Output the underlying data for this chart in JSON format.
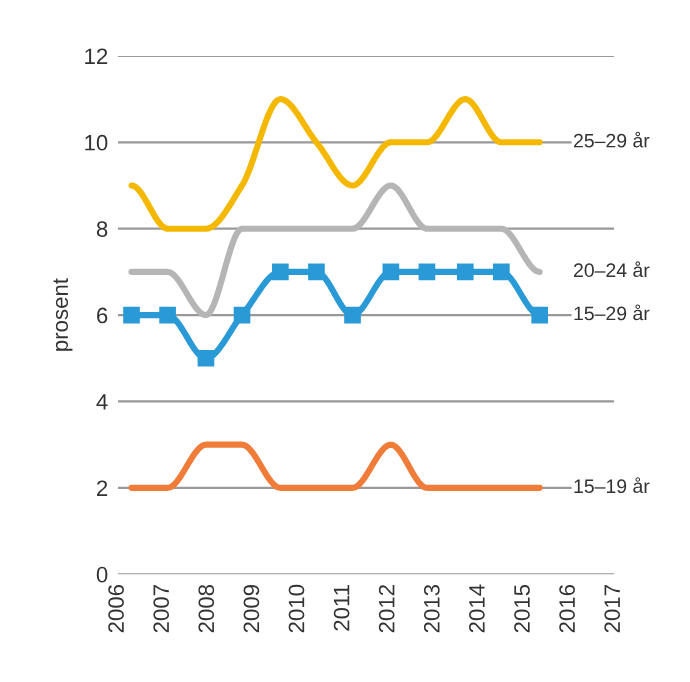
{
  "chart_data": {
    "type": "line",
    "ylabel": "prosent",
    "x": [
      2006.3,
      2007.1,
      2007.95,
      2008.75,
      2009.6,
      2010.4,
      2011.2,
      2012.05,
      2012.85,
      2013.7,
      2014.5,
      2015.35
    ],
    "series": [
      {
        "name": "25–29 år",
        "color": "#f5b800",
        "values": [
          9,
          8,
          8,
          9,
          11,
          10,
          9,
          10,
          10,
          11,
          10,
          10
        ]
      },
      {
        "name": "20–24 år",
        "color": "#b5b5b5",
        "values": [
          7,
          7,
          6,
          8,
          8,
          8,
          8,
          9,
          8,
          8,
          8,
          7
        ]
      },
      {
        "name": "15–29 år",
        "color": "#2a9ad6",
        "marker": "square",
        "values": [
          6,
          6,
          5,
          6,
          7,
          7,
          6,
          7,
          7,
          7,
          7,
          6
        ]
      },
      {
        "name": "15–19 år",
        "color": "#f07c3a",
        "values": [
          2,
          2,
          3,
          3,
          2,
          2,
          2,
          3,
          2,
          2,
          2,
          2
        ]
      }
    ],
    "xlim": [
      2006,
      2017
    ],
    "xticks": [
      2006,
      2007,
      2008,
      2009,
      2010,
      2011,
      2012,
      2013,
      2014,
      2015,
      2016,
      2017
    ],
    "ylim": [
      0,
      12
    ],
    "yticks": [
      0,
      2,
      4,
      6,
      8,
      10,
      12
    ],
    "grid": "y",
    "legend": false
  }
}
